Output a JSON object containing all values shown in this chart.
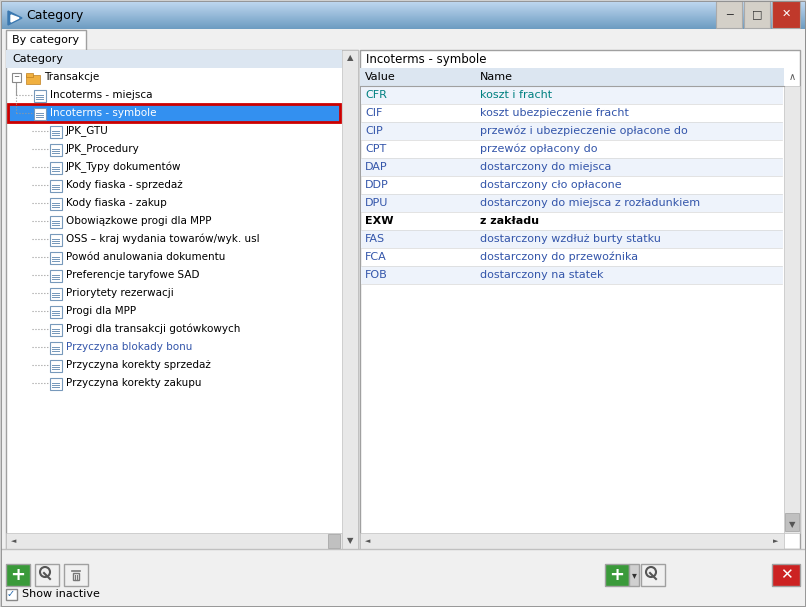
{
  "title": "Category",
  "tab_label": "By category",
  "left_panel_header": "Category",
  "right_panel_header": "Incoterms - symbole",
  "right_col1": "Value",
  "right_col2": "Name",
  "tree_items": [
    {
      "label": "Transakcje",
      "level": 0,
      "type": "folder"
    },
    {
      "label": "Incoterms - miejsca",
      "level": 1,
      "type": "item"
    },
    {
      "label": "Incoterms - symbole",
      "level": 1,
      "type": "item",
      "selected": true
    },
    {
      "label": "JPK_GTU",
      "level": 2,
      "type": "item"
    },
    {
      "label": "JPK_Procedury",
      "level": 2,
      "type": "item"
    },
    {
      "label": "JPK_Typy dokumentów",
      "level": 2,
      "type": "item"
    },
    {
      "label": "Kody fiaska - sprzedaż",
      "level": 2,
      "type": "item"
    },
    {
      "label": "Kody fiaska - zakup",
      "level": 2,
      "type": "item"
    },
    {
      "label": "Obowiązkowe progi dla MPP",
      "level": 2,
      "type": "item"
    },
    {
      "label": "OSS – kraj wydania towarów/wyk. usl",
      "level": 2,
      "type": "item"
    },
    {
      "label": "Powód anulowania dokumentu",
      "level": 2,
      "type": "item"
    },
    {
      "label": "Preferencje taryfowe SAD",
      "level": 2,
      "type": "item"
    },
    {
      "label": "Priorytety rezerwacji",
      "level": 2,
      "type": "item"
    },
    {
      "label": "Progi dla MPP",
      "level": 2,
      "type": "item"
    },
    {
      "label": "Progi dla transakcji gotówkowych",
      "level": 2,
      "type": "item"
    },
    {
      "label": "Przyczyna blokady bonu",
      "level": 2,
      "type": "item",
      "blue_text": true
    },
    {
      "label": "Przyczyna korekty sprzedaż",
      "level": 2,
      "type": "item"
    },
    {
      "label": "Przyczyna korekty zakupu",
      "level": 2,
      "type": "item"
    }
  ],
  "right_items": [
    {
      "value": "CFR",
      "name": "koszt i fracht",
      "color": "#008080",
      "bold": false,
      "italic": true
    },
    {
      "value": "CIF",
      "name": "koszt ubezpieczenie fracht",
      "color": "#3355aa",
      "bold": false,
      "italic": false
    },
    {
      "value": "CIP",
      "name": "przewóz i ubezpieczenie opłacone do",
      "color": "#3355aa",
      "bold": false,
      "italic": false
    },
    {
      "value": "CPT",
      "name": "przewóz opłacony do",
      "color": "#3355aa",
      "bold": false,
      "italic": false
    },
    {
      "value": "DAP",
      "name": "dostarczony do miejsca",
      "color": "#3355aa",
      "bold": false,
      "italic": false
    },
    {
      "value": "DDP",
      "name": "dostarczony cło opłacone",
      "color": "#3355aa",
      "bold": false,
      "italic": false
    },
    {
      "value": "DPU",
      "name": "dostarczony do miejsca z rozładunkiem",
      "color": "#3355aa",
      "bold": false,
      "italic": false
    },
    {
      "value": "EXW",
      "name": "z zakładu",
      "color": "#000000",
      "bold": true,
      "italic": false
    },
    {
      "value": "FAS",
      "name": "dostarczony wzdłuż burty statku",
      "color": "#3355aa",
      "bold": false,
      "italic": false
    },
    {
      "value": "FCA",
      "name": "dostarczony do przewoźnika",
      "color": "#3355aa",
      "bold": false,
      "italic": false
    },
    {
      "value": "FOB",
      "name": "dostarczony na statek",
      "color": "#3355aa",
      "bold": false,
      "italic": false
    }
  ],
  "bg_color": "#f0f4f8",
  "panel_bg": "#ffffff",
  "titlebar_top_color": "#c8daea",
  "titlebar_bot_color": "#8ab4d0",
  "tab_bg": "#ffffff",
  "header_bg": "#dce6f1",
  "selected_bg": "#3390f0",
  "selected_border": "#cc0000",
  "scrollbar_bg": "#e8e8e8",
  "scrollbar_thumb": "#c0c0c0",
  "bottom_bg": "#f0f0f0",
  "show_inactive_label": "Show inactive",
  "cfr_color": "#008080",
  "blue_link_color": "#3355aa"
}
